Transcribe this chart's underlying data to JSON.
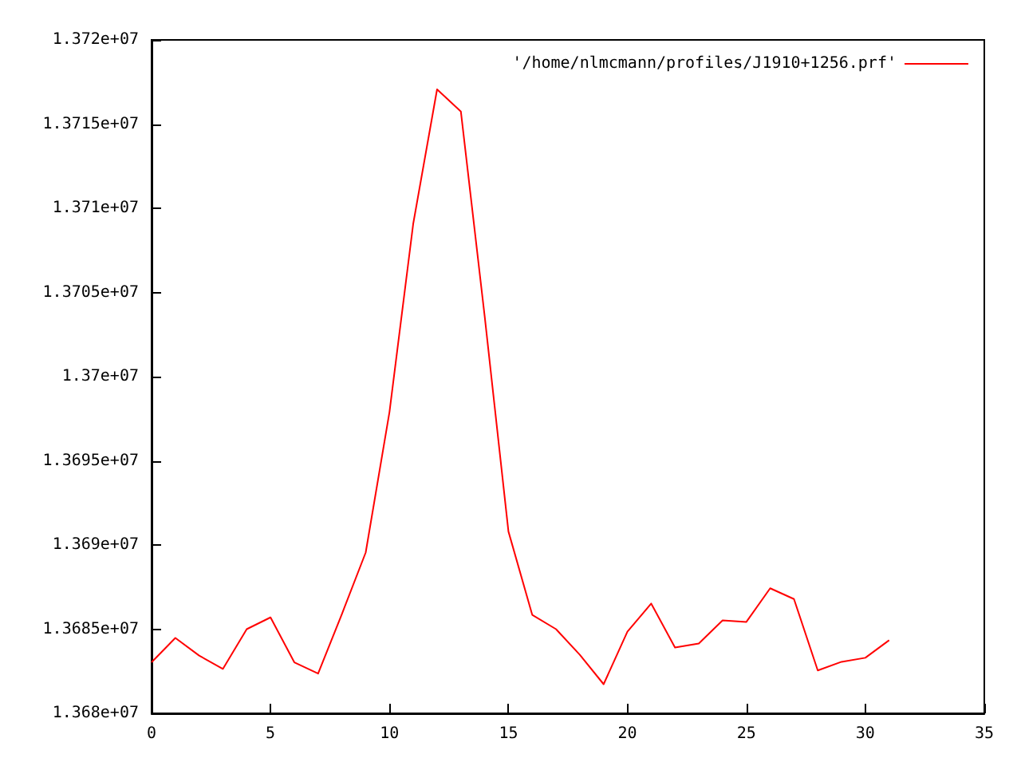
{
  "chart_data": {
    "type": "line",
    "x": [
      0,
      1,
      2,
      3,
      4,
      5,
      6,
      7,
      8,
      9,
      10,
      11,
      12,
      13,
      14,
      15,
      16,
      17,
      18,
      19,
      20,
      21,
      22,
      23,
      24,
      25,
      26,
      27,
      28,
      29,
      30,
      31
    ],
    "series": [
      {
        "name": "'/home/nlmcmann/profiles/J1910+1256.prf'",
        "color": "#ff0000",
        "values": [
          13683030,
          13684480,
          13683430,
          13682640,
          13685000,
          13685700,
          13683030,
          13682360,
          13685900,
          13689550,
          13697900,
          13709100,
          13717060,
          13715750,
          13703600,
          13690800,
          13685850,
          13685000,
          13683480,
          13681730,
          13684850,
          13686520,
          13683910,
          13684150,
          13685520,
          13685430,
          13687430,
          13686790,
          13682550,
          13683060,
          13683300,
          13684340
        ]
      }
    ],
    "xlim": [
      0,
      35
    ],
    "xticks": [
      0,
      5,
      10,
      15,
      20,
      25,
      30,
      35
    ],
    "ylim": [
      13680000,
      13720000
    ],
    "yticks": [
      {
        "value": 13680000,
        "label": "1.368e+07"
      },
      {
        "value": 13685000,
        "label": "1.3685e+07"
      },
      {
        "value": 13690000,
        "label": "1.369e+07"
      },
      {
        "value": 13695000,
        "label": "1.3695e+07"
      },
      {
        "value": 13700000,
        "label": "1.37e+07"
      },
      {
        "value": 13705000,
        "label": "1.3705e+07"
      },
      {
        "value": 13710000,
        "label": "1.371e+07"
      },
      {
        "value": 13715000,
        "label": "1.3715e+07"
      },
      {
        "value": 13720000,
        "label": "1.372e+07"
      }
    ],
    "grid": false,
    "legend": "top right",
    "marker": "none",
    "line_style": "solid"
  }
}
